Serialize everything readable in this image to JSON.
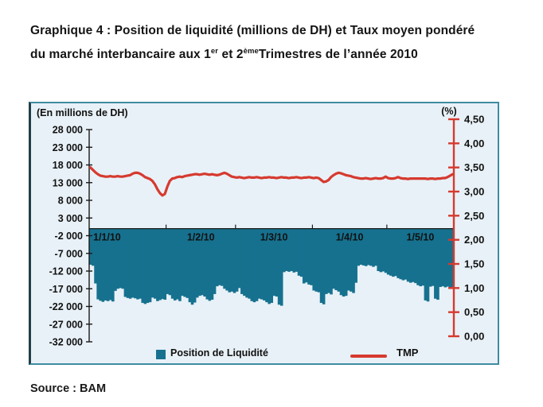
{
  "title": {
    "line1": "Graphique 4 : Position de liquidité (millions de DH) et Taux moyen pondéré",
    "line2_prefix": "du marché interbancaire aux 1",
    "line2_sup1": "er",
    "line2_mid": " et 2",
    "line2_sup2": "ème",
    "line2_suffix": "Trimestres de l’année 2010"
  },
  "legend": {
    "bar_label": "Position de Liquidité",
    "line_label": "TMP"
  },
  "source": "Source : BAM",
  "colors": {
    "bar": "#16718f",
    "line": "#d63a2f",
    "panel_bg": "#e8f1f7",
    "panel_border": "#3e8ca2",
    "axis_black": "#1a1a1a",
    "text": "#111111"
  },
  "chart_data": {
    "type": "bar+line combo (daily data, Jan–May 2010)",
    "title": "Position de liquidité (millions de DH) et Taux moyen pondéré",
    "left_axis": {
      "label": "(En millions de DH)",
      "min": -32000,
      "max": 28000,
      "step": 5000,
      "tick_labels": [
        "28 000",
        "23 000",
        "18 000",
        "13 000",
        "8 000",
        "3 000",
        "-2 000",
        "-7 000",
        "-12 000",
        "-17 000",
        "-22 000",
        "-27 000",
        "-32 000"
      ]
    },
    "right_axis": {
      "label": "(%)",
      "min": 0,
      "max": 4.5,
      "step": 0.5,
      "tick_labels": [
        "4,50",
        "4,00",
        "3,50",
        "3,00",
        "2,50",
        "2,00",
        "1,50",
        "1,00",
        "0,50",
        "0,00"
      ]
    },
    "x_axis": {
      "tick_labels": [
        "1/1/10",
        "1/2/10",
        "1/3/10",
        "1/4/10",
        "1/5/10"
      ],
      "month_days": [
        31,
        28,
        31,
        30,
        27
      ],
      "grid": false,
      "legend_position": "bottom"
    },
    "series": [
      {
        "name": "Position de Liquidité",
        "type": "bar",
        "unit": "millions de DH",
        "values": [
          -10200,
          -10500,
          -15500,
          -20000,
          -20400,
          -20700,
          -20300,
          -20500,
          -20200,
          -20600,
          -17600,
          -17000,
          -16800,
          -17000,
          -19300,
          -19600,
          -19800,
          -19500,
          -19700,
          -20000,
          -19800,
          -21000,
          -21300,
          -21000,
          -20800,
          -19500,
          -19800,
          -20500,
          -20200,
          -19900,
          -20100,
          -18500,
          -18800,
          -19800,
          -20300,
          -20000,
          -20500,
          -19000,
          -19300,
          -19600,
          -20800,
          -21500,
          -20900,
          -19500,
          -19000,
          -18800,
          -19200,
          -20000,
          -20400,
          -20100,
          -18500,
          -16300,
          -16000,
          -16200,
          -17000,
          -17500,
          -18000,
          -17800,
          -18200,
          -17800,
          -16800,
          -18500,
          -19000,
          -19500,
          -19800,
          -20500,
          -20800,
          -20500,
          -19800,
          -20000,
          -20300,
          -20800,
          -21300,
          -21000,
          -19000,
          -19200,
          -21500,
          -21800,
          -12300,
          -12000,
          -12200,
          -12000,
          -12400,
          -12200,
          -13300,
          -13600,
          -15500,
          -15200,
          -15800,
          -16000,
          -17500,
          -17800,
          -18000,
          -21000,
          -21400,
          -18500,
          -18200,
          -18600,
          -17000,
          -17400,
          -17800,
          -18800,
          -19200,
          -19000,
          -17500,
          -17800,
          -18200,
          -15300,
          -10500,
          -10200,
          -10400,
          -10600,
          -10300,
          -10500,
          -10800,
          -10500,
          -12000,
          -12300,
          -12100,
          -12500,
          -13000,
          -13300,
          -13600,
          -13400,
          -14000,
          -14300,
          -14600,
          -14400,
          -15000,
          -15300,
          -15100,
          -15400,
          -16000,
          -16300,
          -16100,
          -20300,
          -20600,
          -16400,
          -16200,
          -19800,
          -20100,
          -16500,
          -16300,
          -16600,
          -16400,
          -16600,
          -16500
        ]
      },
      {
        "name": "TMP",
        "type": "line",
        "unit": "%",
        "values": [
          3.5,
          3.45,
          3.4,
          3.36,
          3.33,
          3.32,
          3.31,
          3.31,
          3.32,
          3.31,
          3.31,
          3.32,
          3.31,
          3.31,
          3.32,
          3.33,
          3.34,
          3.37,
          3.39,
          3.39,
          3.37,
          3.34,
          3.3,
          3.28,
          3.26,
          3.22,
          3.15,
          3.05,
          2.97,
          2.92,
          2.95,
          3.1,
          3.22,
          3.27,
          3.28,
          3.3,
          3.31,
          3.3,
          3.32,
          3.33,
          3.34,
          3.35,
          3.36,
          3.36,
          3.35,
          3.36,
          3.37,
          3.36,
          3.35,
          3.36,
          3.35,
          3.34,
          3.35,
          3.37,
          3.39,
          3.37,
          3.34,
          3.31,
          3.3,
          3.29,
          3.3,
          3.29,
          3.28,
          3.29,
          3.3,
          3.29,
          3.29,
          3.3,
          3.29,
          3.28,
          3.29,
          3.29,
          3.3,
          3.29,
          3.29,
          3.28,
          3.29,
          3.3,
          3.29,
          3.29,
          3.28,
          3.29,
          3.29,
          3.3,
          3.29,
          3.28,
          3.29,
          3.29,
          3.3,
          3.29,
          3.28,
          3.29,
          3.28,
          3.24,
          3.2,
          3.21,
          3.24,
          3.3,
          3.34,
          3.37,
          3.39,
          3.38,
          3.36,
          3.34,
          3.33,
          3.32,
          3.3,
          3.29,
          3.28,
          3.27,
          3.27,
          3.28,
          3.27,
          3.26,
          3.27,
          3.28,
          3.27,
          3.27,
          3.28,
          3.31,
          3.28,
          3.27,
          3.27,
          3.28,
          3.3,
          3.28,
          3.27,
          3.27,
          3.26,
          3.27,
          3.27,
          3.27,
          3.27,
          3.27,
          3.27,
          3.27,
          3.26,
          3.27,
          3.27,
          3.26,
          3.27,
          3.27,
          3.28,
          3.28,
          3.3,
          3.33,
          3.36
        ]
      }
    ]
  }
}
